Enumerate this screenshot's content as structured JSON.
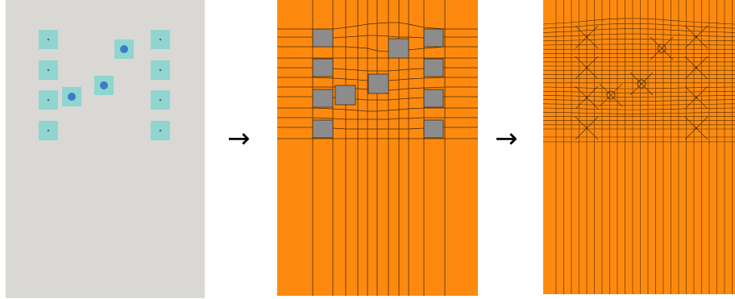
{
  "colors": {
    "grey_background": "#d9d8d5",
    "pad": "#8fd6d0",
    "pin_small": "#5a6f70",
    "pin_large": "#3a7cc8",
    "mesh_fill": "#fd8a0f",
    "mesh_line": "#4a2a00",
    "mesh_block": "#8c8c8c"
  },
  "arrows": [
    "→",
    "→"
  ],
  "icons": {
    "arrow": "right-arrow-icon",
    "small_pin": "dot-icon",
    "large_pin": "circle-icon"
  }
}
